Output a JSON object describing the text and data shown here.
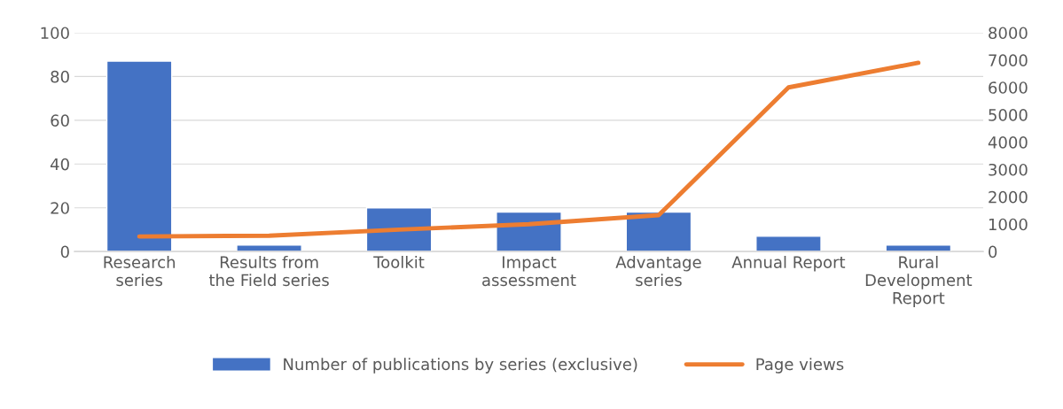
{
  "chart_data": {
    "type": "bar",
    "categories": [
      "Research series",
      "Results from the Field series",
      "Toolkit",
      "Impact assessment",
      "Advantage series",
      "Annual Report",
      "Rural Development Report"
    ],
    "series": [
      {
        "name": "Number of publications by series (exclusive)",
        "color": "#4472c4",
        "values": [
          87,
          3,
          20,
          18,
          18,
          7,
          3
        ]
      },
      {
        "name": "Page views",
        "type": "line",
        "axis": "y2",
        "color": "#ed7d31",
        "values": [
          550,
          580,
          800,
          1000,
          1330,
          6000,
          6900
        ]
      }
    ],
    "ylim": [
      0,
      100
    ],
    "yticks": [
      0,
      20,
      40,
      60,
      80,
      100
    ],
    "y2lim": [
      0,
      8000
    ],
    "y2ticks": [
      0,
      1000,
      2000,
      3000,
      4000,
      5000,
      6000,
      7000,
      8000
    ],
    "grid": "y",
    "legend": "bottom"
  }
}
